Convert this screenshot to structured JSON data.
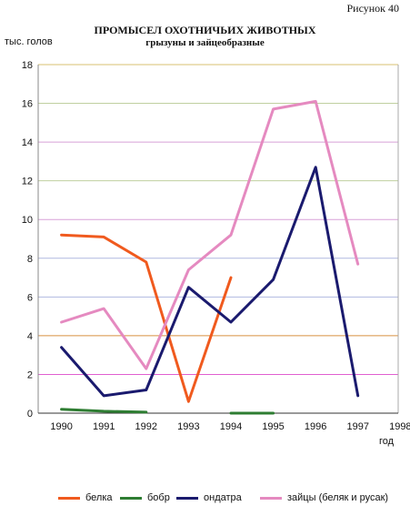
{
  "figure_label": "Рисунок 40",
  "chart_data": {
    "type": "line",
    "title": "ПРОМЫСЕЛ ОХОТНИЧЬИХ ЖИВОТНЫХ",
    "subtitle": "грызуны и зайцеобразные",
    "ylabel": "тыс. голов",
    "xlabel": "год",
    "ylim": [
      0,
      18
    ],
    "yticks": [
      0,
      2,
      4,
      6,
      8,
      10,
      12,
      14,
      16,
      18
    ],
    "categories": [
      "1990",
      "1991",
      "1992",
      "1993",
      "1994",
      "1995",
      "1996",
      "1997",
      "1998"
    ],
    "grid": true,
    "legend_position": "bottom",
    "series": [
      {
        "name": "белка",
        "color": "#f05a1e",
        "values": [
          9.2,
          9.1,
          7.8,
          0.6,
          7.0,
          null,
          null,
          null,
          null
        ]
      },
      {
        "name": "бобр",
        "color": "#2e7d32",
        "values": [
          0.2,
          0.1,
          0.05,
          null,
          0.0,
          0.0,
          null,
          null,
          null
        ]
      },
      {
        "name": "ондатра",
        "color": "#1a1a6e",
        "values": [
          3.4,
          0.9,
          1.2,
          6.5,
          4.7,
          6.9,
          12.7,
          0.9,
          null
        ]
      },
      {
        "name": "зайцы (беляк и русак)",
        "color": "#e58ac0",
        "values": [
          4.7,
          5.4,
          2.3,
          7.4,
          9.2,
          15.7,
          16.1,
          7.7,
          null
        ]
      }
    ],
    "gridline_colors": [
      "#a0a0a0",
      "#e060d0",
      "#d89040",
      "#b0b8e0",
      "#b0b8e0",
      "#d8a0d8",
      "#c0d0a0",
      "#d8a0d8",
      "#c0d0a0",
      "#d8c070"
    ]
  }
}
